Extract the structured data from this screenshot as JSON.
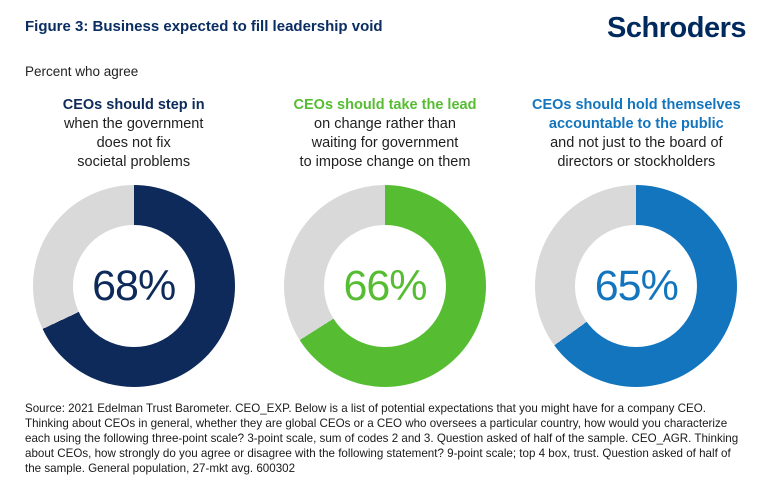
{
  "figure": {
    "title": "Figure 3: Business expected to fill leadership void",
    "brand_logo": "Schroders",
    "subtitle": "Percent who agree",
    "footnote": "Source: 2021 Edelman Trust Barometer. CEO_EXP. Below is a list of potential expectations that you might have for a company CEO. Thinking about CEOs in general, whether they are global CEOs or a CEO who oversees a particular country, how would you characterize each using the following three-point scale? 3-point scale, sum of codes 2 and 3. Question asked of half of the sample. CEO_AGR. Thinking about CEOs, how strongly do you agree or disagree with the following statement? 9-point scale; top 4 box, trust. Question asked of half of the sample. General population, 27-mkt avg. 600302"
  },
  "colors": {
    "title_navy": "#0a2d62",
    "brand_navy": "#002a5e",
    "remainder_gray": "#d9d9d9",
    "body_text": "#1f1f1f"
  },
  "chart_data": {
    "type": "pie",
    "variant": "donut",
    "unit": "percent",
    "start_angle_deg": 0,
    "direction": "clockwise",
    "remainder_color": "#d9d9d9",
    "series": [
      {
        "heading_bold_lines": [
          "CEOs should step in"
        ],
        "heading_plain_lines": [
          "when the government",
          "does not fix",
          "societal problems"
        ],
        "value": 68,
        "display": "68%",
        "color": "#0d2a5a"
      },
      {
        "heading_bold_lines": [
          "CEOs should take the lead"
        ],
        "heading_plain_lines": [
          "on change rather than",
          "waiting for government",
          "to impose change on them"
        ],
        "value": 66,
        "display": "66%",
        "color": "#56bd33"
      },
      {
        "heading_bold_lines": [
          "CEOs should hold themselves",
          "accountable to the public"
        ],
        "heading_plain_lines": [
          "and not just to the board of",
          "directors or stockholders"
        ],
        "value": 65,
        "display": "65%",
        "color": "#1375bd"
      }
    ]
  }
}
